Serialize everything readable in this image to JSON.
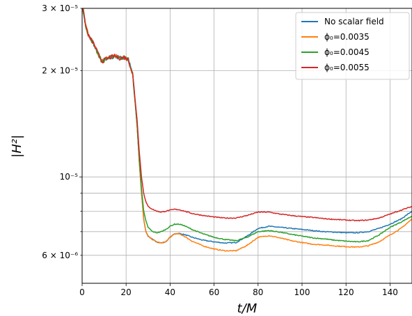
{
  "chart_data": {
    "type": "line",
    "title": "",
    "xlabel": "t/M",
    "ylabel": "|H²|",
    "xlim": [
      0,
      150
    ],
    "ylim": [
      5e-06,
      3e-05
    ],
    "yscale": "log",
    "grid": true,
    "legend_position": "top-right",
    "x_ticks": [
      0,
      20,
      40,
      60,
      80,
      100,
      120,
      140
    ],
    "y_major_ticks": [
      1e-05
    ],
    "y_major_tick_labels": [
      "10⁻⁵"
    ],
    "y_minor_ticks": [
      6e-06,
      7e-06,
      8e-06,
      9e-06,
      2e-05,
      3e-05
    ],
    "y_minor_tick_labels": [
      "6 × 10⁻⁶",
      "",
      "",
      "",
      "2 × 10⁻⁵",
      "3 × 10⁻⁵"
    ],
    "series": [
      {
        "name": "No scalar field",
        "color": "#1f77b4",
        "x": [
          0,
          1.5,
          3,
          5,
          7,
          9,
          11,
          13,
          15,
          17,
          19,
          21,
          23,
          25,
          26,
          27,
          28,
          29,
          30,
          32,
          34,
          36,
          38,
          40,
          42,
          44,
          46,
          48,
          50,
          55,
          60,
          65,
          70,
          75,
          80,
          85,
          90,
          95,
          100,
          105,
          110,
          115,
          120,
          125,
          130,
          135,
          140,
          145,
          150
        ],
        "y": [
          3.1e-05,
          2.7e-05,
          2.5e-05,
          2.4e-05,
          2.25e-05,
          2.12e-05,
          2.16e-05,
          2.18e-05,
          2.2e-05,
          2.17e-05,
          2.18e-05,
          2.15e-05,
          1.95e-05,
          1.4e-05,
          1.1e-05,
          9e-06,
          7.6e-06,
          7e-06,
          6.8e-06,
          6.65e-06,
          6.55e-06,
          6.5e-06,
          6.55e-06,
          6.75e-06,
          6.9e-06,
          6.92e-06,
          6.88e-06,
          6.82e-06,
          6.75e-06,
          6.62e-06,
          6.55e-06,
          6.5e-06,
          6.52e-06,
          6.8e-06,
          7.15e-06,
          7.25e-06,
          7.2e-06,
          7.15e-06,
          7.1e-06,
          7.05e-06,
          7e-06,
          6.98e-06,
          6.95e-06,
          6.95e-06,
          7e-06,
          7.15e-06,
          7.35e-06,
          7.6e-06,
          8e-06
        ]
      },
      {
        "name": "ϕ₀=0.0035",
        "color": "#ff7f0e",
        "x": [
          0,
          1.5,
          3,
          5,
          7,
          9,
          11,
          13,
          15,
          17,
          19,
          21,
          23,
          25,
          26,
          27,
          28,
          29,
          30,
          32,
          34,
          36,
          38,
          40,
          42,
          44,
          46,
          48,
          50,
          55,
          60,
          65,
          70,
          75,
          80,
          85,
          90,
          95,
          100,
          105,
          110,
          115,
          120,
          125,
          130,
          135,
          140,
          145,
          150
        ],
        "y": [
          3.1e-05,
          2.7e-05,
          2.5e-05,
          2.4e-05,
          2.25e-05,
          2.12e-05,
          2.16e-05,
          2.18e-05,
          2.2e-05,
          2.17e-05,
          2.18e-05,
          2.15e-05,
          1.95e-05,
          1.4e-05,
          1.1e-05,
          9e-06,
          7.6e-06,
          7e-06,
          6.8e-06,
          6.65e-06,
          6.55e-06,
          6.5e-06,
          6.55e-06,
          6.75e-06,
          6.9e-06,
          6.9e-06,
          6.82e-06,
          6.7e-06,
          6.58e-06,
          6.38e-06,
          6.25e-06,
          6.18e-06,
          6.18e-06,
          6.4e-06,
          6.75e-06,
          6.82e-06,
          6.72e-06,
          6.6e-06,
          6.52e-06,
          6.45e-06,
          6.42e-06,
          6.38e-06,
          6.35e-06,
          6.33e-06,
          6.38e-06,
          6.55e-06,
          6.85e-06,
          7.15e-06,
          7.6e-06
        ]
      },
      {
        "name": "ϕ₀=0.0045",
        "color": "#2ca02c",
        "x": [
          0,
          1.5,
          3,
          5,
          7,
          9,
          11,
          13,
          15,
          17,
          19,
          21,
          23,
          25,
          26,
          27,
          28,
          29,
          30,
          32,
          34,
          36,
          38,
          40,
          42,
          44,
          46,
          48,
          50,
          55,
          60,
          65,
          70,
          75,
          80,
          85,
          90,
          95,
          100,
          105,
          110,
          115,
          120,
          125,
          130,
          135,
          140,
          145,
          150
        ],
        "y": [
          3.1e-05,
          2.7e-05,
          2.5e-05,
          2.4e-05,
          2.25e-05,
          2.12e-05,
          2.16e-05,
          2.18e-05,
          2.2e-05,
          2.17e-05,
          2.18e-05,
          2.15e-05,
          1.95e-05,
          1.4e-05,
          1.12e-05,
          9.3e-06,
          8e-06,
          7.5e-06,
          7.2e-06,
          7e-06,
          6.95e-06,
          7e-06,
          7.1e-06,
          7.25e-06,
          7.35e-06,
          7.35e-06,
          7.3e-06,
          7.2e-06,
          7.1e-06,
          6.9e-06,
          6.75e-06,
          6.65e-06,
          6.6e-06,
          6.75e-06,
          7e-06,
          7.05e-06,
          6.98e-06,
          6.88e-06,
          6.8e-06,
          6.72e-06,
          6.68e-06,
          6.62e-06,
          6.58e-06,
          6.55e-06,
          6.6e-06,
          6.85e-06,
          7.2e-06,
          7.45e-06,
          7.75e-06
        ]
      },
      {
        "name": "ϕ₀=0.0055",
        "color": "#d62728",
        "x": [
          0,
          1.5,
          3,
          5,
          7,
          9,
          11,
          13,
          15,
          17,
          19,
          21,
          23,
          25,
          26,
          27,
          28,
          29,
          30,
          32,
          34,
          36,
          38,
          40,
          42,
          44,
          46,
          48,
          50,
          55,
          60,
          65,
          70,
          75,
          80,
          85,
          90,
          95,
          100,
          105,
          110,
          115,
          120,
          125,
          130,
          135,
          140,
          145,
          150
        ],
        "y": [
          3.1e-05,
          2.7e-05,
          2.5e-05,
          2.4e-05,
          2.25e-05,
          2.12e-05,
          2.16e-05,
          2.18e-05,
          2.2e-05,
          2.17e-05,
          2.18e-05,
          2.15e-05,
          1.95e-05,
          1.45e-05,
          1.18e-05,
          1e-05,
          9e-06,
          8.5e-06,
          8.25e-06,
          8.1e-06,
          8e-06,
          7.95e-06,
          8e-06,
          8.05e-06,
          8.1e-06,
          8.08e-06,
          8.02e-06,
          7.95e-06,
          7.88e-06,
          7.78e-06,
          7.7e-06,
          7.65e-06,
          7.65e-06,
          7.78e-06,
          7.95e-06,
          7.95e-06,
          7.85e-06,
          7.78e-06,
          7.72e-06,
          7.68e-06,
          7.62e-06,
          7.58e-06,
          7.55e-06,
          7.52e-06,
          7.55e-06,
          7.65e-06,
          7.85e-06,
          8.05e-06,
          8.25e-06
        ]
      }
    ]
  }
}
